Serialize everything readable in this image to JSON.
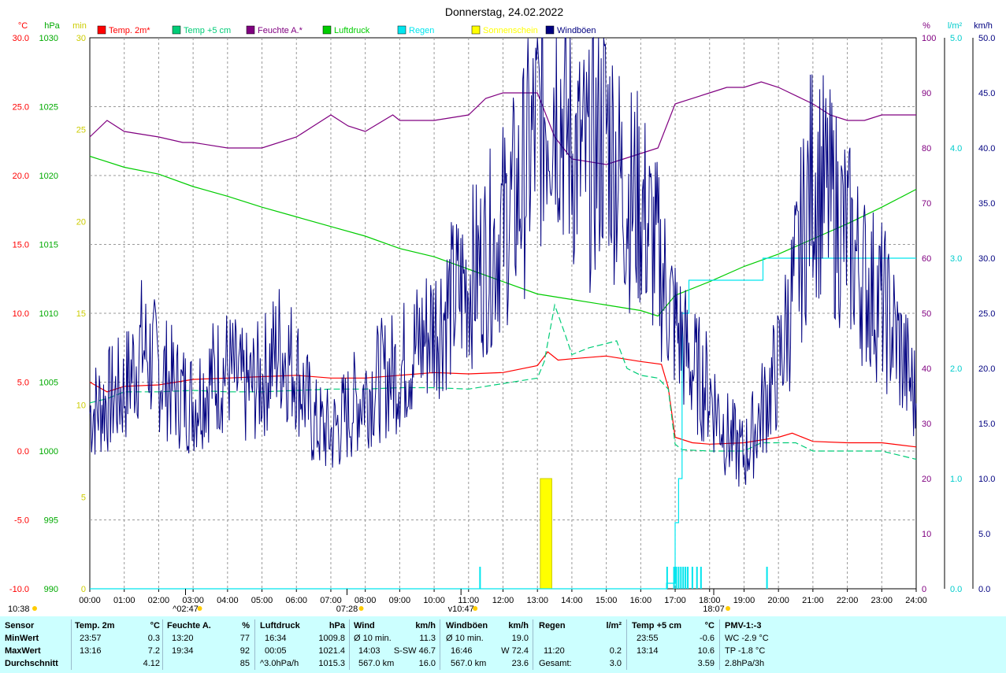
{
  "chart_data": {
    "type": "line",
    "title": "Donnerstag, 24.02.2022",
    "x_ticks": [
      "00:00",
      "01:00",
      "02:00",
      "03:00",
      "04:00",
      "05:00",
      "06:00",
      "07:00",
      "08:00",
      "09:00",
      "10:00",
      "11:00",
      "12:00",
      "13:00",
      "14:00",
      "15:00",
      "16:00",
      "17:00",
      "18:00",
      "19:00",
      "20:00",
      "21:00",
      "22:00",
      "23:00",
      "24:00"
    ],
    "x_range_hours": [
      0,
      24
    ],
    "grid": true,
    "legend_position": "top",
    "axes": {
      "temp": {
        "unit": "°C",
        "color": "#ff0000",
        "range": [
          -10,
          30
        ],
        "ticks": [
          "-10.0",
          "-5.0",
          "0.0",
          "5.0",
          "10.0",
          "15.0",
          "20.0",
          "25.0",
          "30.0"
        ]
      },
      "pressure": {
        "unit": "hPa",
        "color": "#00aa00",
        "range": [
          990,
          1030
        ],
        "ticks": [
          "990",
          "995",
          "1000",
          "1005",
          "1010",
          "1015",
          "1020",
          "1025",
          "1030"
        ]
      },
      "sunshine": {
        "unit": "min",
        "color": "#cccc00",
        "range": [
          0,
          30
        ],
        "ticks": [
          "0",
          "5",
          "10",
          "15",
          "20",
          "25",
          "30"
        ]
      },
      "humidity": {
        "unit": "%",
        "color": "#800080",
        "range": [
          0,
          100
        ],
        "ticks": [
          "0",
          "10",
          "20",
          "30",
          "40",
          "50",
          "60",
          "70",
          "80",
          "90",
          "100"
        ]
      },
      "rain": {
        "unit": "l/m²",
        "color": "#00cccc",
        "range": [
          0,
          5
        ],
        "ticks": [
          "0.0",
          "1.0",
          "2.0",
          "3.0",
          "4.0",
          "5.0"
        ]
      },
      "wind": {
        "unit": "km/h",
        "color": "#000080",
        "range": [
          0,
          50
        ],
        "ticks": [
          "0.0",
          "5.0",
          "10.0",
          "15.0",
          "20.0",
          "25.0",
          "30.0",
          "35.0",
          "40.0",
          "45.0",
          "50.0"
        ]
      }
    },
    "legend": [
      {
        "name": "Temp. 2m*",
        "color": "#ff0000"
      },
      {
        "name": "Temp +5 cm",
        "color": "#00cc77"
      },
      {
        "name": "Feuchte A.*",
        "color": "#800080"
      },
      {
        "name": "Luftdruck",
        "color": "#00cc00"
      },
      {
        "name": "Regen",
        "color": "#00e5ee"
      },
      {
        "name": "Sonnenschein",
        "color": "#ffff00"
      },
      {
        "name": "Windböen",
        "color": "#000080"
      }
    ],
    "series": [
      {
        "name": "Temp. 2m*",
        "axis": "temp",
        "color": "#ff0000",
        "x": [
          0,
          0.5,
          1,
          2,
          3,
          4,
          5,
          6,
          7,
          8,
          9,
          10,
          11,
          12,
          13,
          13.3,
          13.6,
          14,
          15,
          16,
          16.6,
          16.8,
          17,
          17.5,
          18,
          19,
          20,
          20.4,
          21,
          22,
          23,
          24
        ],
        "y": [
          5.0,
          4.3,
          4.7,
          4.8,
          5.2,
          5.3,
          5.4,
          5.5,
          5.3,
          5.3,
          5.5,
          5.7,
          5.6,
          5.7,
          6.2,
          7.2,
          6.6,
          6.7,
          6.9,
          6.5,
          6.3,
          4.6,
          1.0,
          0.6,
          0.5,
          0.6,
          1.0,
          1.3,
          0.7,
          0.6,
          0.6,
          0.3
        ]
      },
      {
        "name": "Temp +5 cm",
        "axis": "temp",
        "color": "#00cc77",
        "dashed": true,
        "x": [
          0,
          0.5,
          1,
          2,
          3,
          4,
          5,
          6,
          7,
          8,
          9,
          10,
          11,
          11.5,
          12,
          13,
          13.2,
          13.5,
          13.8,
          14,
          14.5,
          15,
          15.3,
          15.6,
          16,
          16.5,
          16.8,
          17,
          17.2,
          18,
          19,
          19.5,
          20,
          20.5,
          21,
          22,
          23,
          24
        ],
        "y": [
          3.5,
          3.8,
          4.3,
          4.3,
          4.4,
          4.3,
          4.3,
          4.4,
          4.5,
          4.5,
          4.6,
          4.6,
          4.5,
          4.7,
          4.9,
          5.3,
          6.5,
          10.6,
          8.5,
          7.0,
          7.5,
          7.8,
          8.0,
          6.0,
          5.5,
          5.3,
          4.5,
          0.5,
          0.1,
          0.0,
          0.0,
          0.6,
          0.6,
          0.6,
          0.0,
          0.0,
          0.0,
          -0.6
        ]
      },
      {
        "name": "Feuchte A.*",
        "axis": "humidity",
        "color": "#800080",
        "x": [
          0,
          0.5,
          1,
          2,
          2.7,
          3,
          4,
          4.5,
          5,
          6,
          6.5,
          7,
          7.5,
          8,
          8.8,
          9,
          10,
          11,
          11.5,
          12,
          13,
          13.5,
          14,
          15,
          16,
          16.5,
          17,
          18,
          18.5,
          19,
          19.5,
          20,
          21,
          21.5,
          22,
          22.5,
          23,
          24
        ],
        "y": [
          82,
          85,
          83,
          82,
          81,
          81,
          80,
          80,
          80,
          82,
          84,
          86,
          84,
          83,
          86,
          85,
          85,
          86,
          89,
          90,
          90,
          82,
          78,
          77,
          79,
          80,
          88,
          90,
          91,
          91,
          92,
          91,
          88,
          86,
          85,
          85,
          86,
          86
        ]
      },
      {
        "name": "Luftdruck",
        "axis": "pressure",
        "color": "#00cc00",
        "x": [
          0,
          1,
          2,
          3,
          4,
          5,
          6,
          7,
          8,
          9,
          10,
          11,
          12,
          13,
          14,
          15,
          16,
          16.5,
          17,
          18,
          19,
          20,
          21,
          22,
          23,
          24
        ],
        "y": [
          1021.4,
          1020.6,
          1020.1,
          1019.2,
          1018.5,
          1017.7,
          1017.0,
          1016.3,
          1015.6,
          1014.7,
          1014.1,
          1013.2,
          1012.3,
          1011.4,
          1011.0,
          1010.6,
          1010.2,
          1009.8,
          1011.3,
          1012.3,
          1013.4,
          1014.3,
          1015.4,
          1016.5,
          1017.7,
          1019.0
        ]
      },
      {
        "name": "Regen",
        "axis": "rain",
        "color": "#00e5ee",
        "x": [
          0,
          11.2,
          11.25,
          16.72,
          16.75,
          17.0,
          17.1,
          17.2,
          17.4,
          19.5,
          19.55,
          20.0,
          24
        ],
        "y": [
          0,
          0,
          0,
          0,
          0.05,
          0.6,
          1.0,
          2.5,
          2.8,
          2.8,
          3.0,
          3.0,
          3.0
        ]
      },
      {
        "name": "Windböen",
        "axis": "wind",
        "color": "#000080",
        "x": [
          0,
          1,
          1.5,
          2,
          2.5,
          3,
          3.5,
          4,
          4.5,
          5,
          5.5,
          6,
          6.5,
          7,
          7.5,
          8,
          8.5,
          9,
          9.5,
          10,
          10.5,
          11,
          11.5,
          12,
          12.5,
          13,
          13.5,
          14,
          14.5,
          15,
          15.5,
          16,
          16.5,
          17,
          17.5,
          18,
          18.5,
          19,
          19.5,
          20,
          20.5,
          21,
          21.5,
          22,
          22.5,
          23,
          23.5,
          24
        ],
        "y": [
          16,
          18,
          22,
          20,
          18,
          17,
          19,
          20,
          18,
          19,
          22,
          20,
          15,
          14,
          16,
          18,
          19,
          20,
          22,
          24,
          26,
          28,
          30,
          33,
          36,
          42,
          46,
          40,
          38,
          42,
          36,
          35,
          30,
          24,
          20,
          18,
          14,
          12,
          16,
          20,
          28,
          38,
          35,
          32,
          28,
          26,
          22,
          17
        ]
      }
    ],
    "sun_bars": [
      {
        "start": "13:05",
        "end": "13:25",
        "minutes": 6
      }
    ],
    "rain_marks": [
      "11:20",
      "16:46",
      "16:58",
      "17:02",
      "17:06",
      "17:10",
      "17:14",
      "17:18",
      "17:22",
      "17:30",
      "17:38",
      "17:45",
      "19:40"
    ],
    "markers": [
      {
        "label": "10:38",
        "pos": "left"
      },
      {
        "label": "^02:47",
        "hour": 2.78
      },
      {
        "label": "07:28",
        "hour": 7.47
      },
      {
        "label": "v10:47",
        "hour": 10.78
      },
      {
        "label": "18:07",
        "hour": 18.12
      }
    ]
  },
  "stats": {
    "col_sensor": {
      "header": "Sensor",
      "min": "MinWert",
      "max": "MaxWert",
      "avg": "Durchschnitt"
    },
    "col_temp2m": {
      "header": "Temp. 2m",
      "unit": "°C",
      "min_time": "23:57",
      "min_val": "0.3",
      "max_time": "13:16",
      "max_val": "7.2",
      "avg_val": "4.12"
    },
    "col_hum": {
      "header": "Feuchte A.",
      "unit": "%",
      "min_time": "13:20",
      "min_val": "77",
      "max_time": "19:34",
      "max_val": "92",
      "avg_val": "85"
    },
    "col_press": {
      "header": "Luftdruck",
      "unit": "hPa",
      "min_time": "16:34",
      "min_val": "1009.8",
      "max_time": "00:05",
      "max_val": "1021.4",
      "avg_label": "^3.0hPa/h",
      "avg_val": "1015.3"
    },
    "col_wind": {
      "header": "Wind",
      "unit": "km/h",
      "min_label": "Ø 10 min.",
      "min_val": "11.3",
      "max_time": "14:03",
      "max_val": "S-SW 46.7",
      "avg_label": "567.0 km",
      "avg_val": "16.0"
    },
    "col_gust": {
      "header": "Windböen",
      "unit": "km/h",
      "min_label": "Ø 10 min.",
      "min_val": "19.0",
      "max_time": "16:46",
      "max_val": "W 72.4",
      "avg_label": "567.0 km",
      "avg_val": "23.6"
    },
    "col_rain": {
      "header": "Regen",
      "unit": "l/m²",
      "max_time": "11:20",
      "max_val": "0.2",
      "avg_label": "Gesamt:",
      "avg_val": "3.0"
    },
    "col_temp5": {
      "header": "Temp +5 cm",
      "unit": "°C",
      "min_time": "23:55",
      "min_val": "-0.6",
      "max_time": "13:14",
      "max_val": "10.6",
      "avg_val": "3.59"
    },
    "col_pmv": {
      "header": "PMV-1:-3",
      "min_val": "WC -2.9 °C",
      "max_val": "TP -1.8 °C",
      "avg_val": "2.8hPa/3h"
    }
  }
}
